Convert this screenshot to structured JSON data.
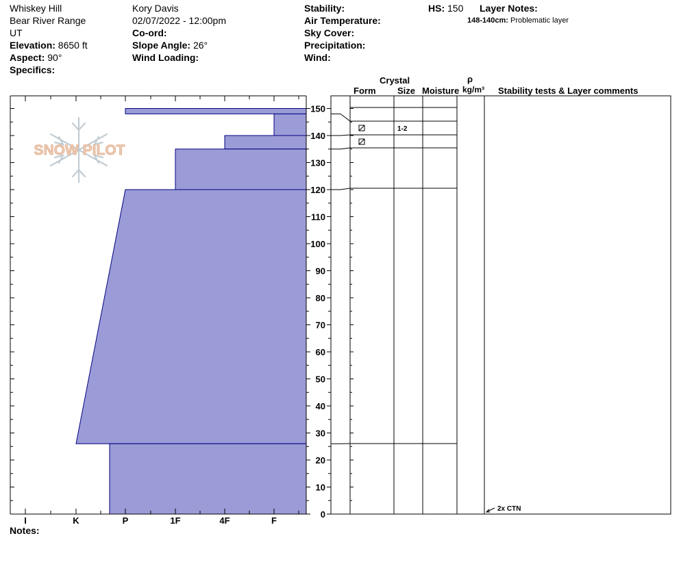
{
  "site": {
    "name": "Whiskey Hill",
    "range": "Bear River Range",
    "state": "UT",
    "elevation_label": "Elevation:",
    "elevation": "8650 ft",
    "aspect_label": "Aspect:",
    "aspect": "90°",
    "specifics_label": "Specifics:"
  },
  "observer": {
    "name": "Kory Davis",
    "datetime": "02/07/2022 - 12:00pm",
    "coord_label": "Co-ord:",
    "slope_label": "Slope Angle:",
    "slope": "26°",
    "wind_loading_label": "Wind Loading:"
  },
  "conditions": {
    "stability_label": "Stability:",
    "air_temp_label": "Air Temperature:",
    "sky_label": "Sky Cover:",
    "precip_label": "Precipitation:",
    "wind_label": "Wind:"
  },
  "hs": {
    "label": "HS:",
    "value": "150"
  },
  "layer_notes": {
    "title": "Layer Notes:",
    "range": "148-140cm:",
    "note": "Problematic layer"
  },
  "logo_text": "SNOW PILOT",
  "notes_label": "Notes:",
  "columns": {
    "crystal": "Crystal",
    "form": "Form",
    "size": "Size",
    "moisture": "Moisture",
    "rho": "ρ",
    "density_unit": "kg/m³",
    "stability": "Stability tests & Layer comments"
  },
  "stability_test": "2x CTN",
  "form_symbol": "⧄",
  "colors": {
    "fill": "#9b9bd7",
    "stroke": "#00007f"
  },
  "chart_data": {
    "type": "area",
    "y_axis": {
      "min": 0,
      "max": 150,
      "ticks": [
        0,
        10,
        20,
        30,
        40,
        50,
        60,
        70,
        80,
        90,
        100,
        110,
        120,
        130,
        140,
        150
      ]
    },
    "hardness_scale": [
      "I",
      "K",
      "P",
      "1F",
      "4F",
      "F"
    ],
    "layers": [
      {
        "top": 150,
        "bottom": 148,
        "hardness_top": "P",
        "hardness_bottom": "P"
      },
      {
        "top": 148,
        "bottom": 140,
        "hardness_top": "F",
        "hardness_bottom": "F",
        "grain_size": "1-2"
      },
      {
        "top": 140,
        "bottom": 135,
        "hardness_top": "4F",
        "hardness_bottom": "4F"
      },
      {
        "top": 135,
        "bottom": 120,
        "hardness_top": "1F",
        "hardness_bottom": "1F"
      },
      {
        "top": 120,
        "bottom": 26,
        "hardness_top": "P",
        "hardness_bottom": "K"
      },
      {
        "top": 26,
        "bottom": 0,
        "hardness_top": "P-",
        "hardness_bottom": "P-"
      }
    ]
  }
}
